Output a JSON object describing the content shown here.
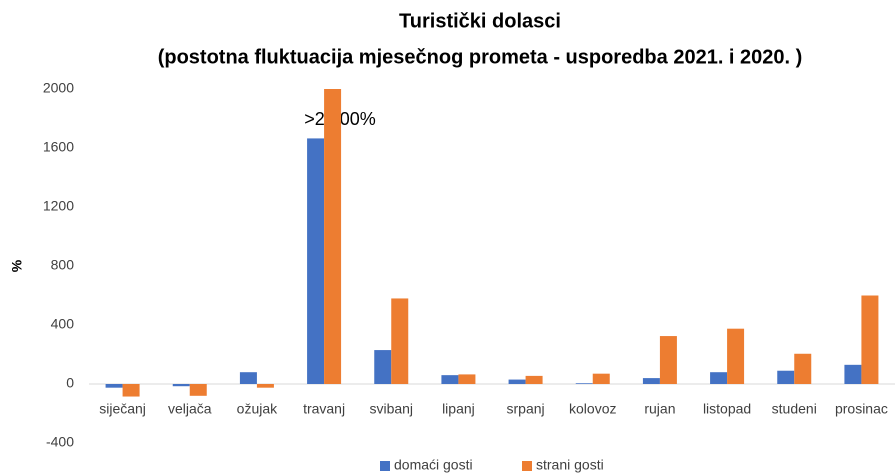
{
  "chart_data": {
    "type": "bar",
    "title": "Turistički dolasci",
    "subtitle": "(postotna fluktuacija mjesečnog prometa - usporedba 2021. i 2020. )",
    "y_label": "%",
    "annotation": ">2.000%",
    "categories": [
      "siječanj",
      "veljača",
      "ožujak",
      "travanj",
      "svibanj",
      "lipanj",
      "srpanj",
      "kolovoz",
      "rujan",
      "listopad",
      "studeni",
      "prosinac"
    ],
    "series": [
      {
        "name": "domaći gosti",
        "color": "#4472c4",
        "values": [
          -25,
          -15,
          80,
          1665,
          230,
          60,
          30,
          5,
          40,
          80,
          90,
          130
        ]
      },
      {
        "name": "strani gosti",
        "color": "#ed7d31",
        "values": [
          -85,
          -80,
          -25,
          2000,
          580,
          65,
          55,
          70,
          325,
          375,
          205,
          600
        ]
      }
    ],
    "ylim": [
      -400,
      2000
    ],
    "yticks": [
      -400,
      0,
      400,
      800,
      1200,
      1600,
      2000
    ],
    "grid": false,
    "legend": "bottom"
  }
}
